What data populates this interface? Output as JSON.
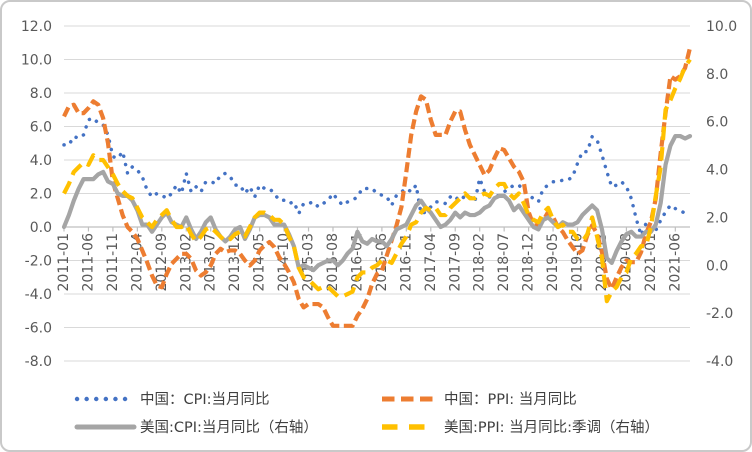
{
  "frame": {
    "background": "#ffffff",
    "border_color": "#c9c9c9"
  },
  "chart_data": {
    "type": "line",
    "title": "",
    "x_range": [
      "2011-01",
      "2021-09"
    ],
    "n_points": 129,
    "x_label_every": 5,
    "x_tick_labels": [
      "2011-01",
      "2011-06",
      "2011-11",
      "2012-04",
      "2012-09",
      "2013-02",
      "2013-07",
      "2013-12",
      "2014-05",
      "2014-10",
      "2015-03",
      "2015-08",
      "2016-01",
      "2016-06",
      "2016-11",
      "2017-04",
      "2017-09",
      "2018-02",
      "2018-07",
      "2018-12",
      "2019-05",
      "2019-10",
      "2020-03",
      "2020-08",
      "2021-01",
      "2021-06"
    ],
    "grid": true,
    "left_axis": {
      "min": -8,
      "max": 12,
      "step": 2,
      "tick_labels": [
        "12.0",
        "10.0",
        "8.0",
        "6.0",
        "4.0",
        "2.0",
        "0.0",
        "-2.0",
        "-4.0",
        "-6.0",
        "-8.0"
      ]
    },
    "right_axis": {
      "min": -4,
      "max": 10,
      "step": 2,
      "tick_labels": [
        "10.0",
        "8.0",
        "6.0",
        "4.0",
        "2.0",
        "0.0",
        "-2.0",
        "-4.0"
      ]
    },
    "axis_label_color": "#595959",
    "gridline_color": "#d9d9d9",
    "axis_line_color": "#bfbfbf",
    "legend": {
      "position": "bottom",
      "rows": 2,
      "columns": 2,
      "text_color": "#404040"
    },
    "series": [
      {
        "id": "china-cpi",
        "name": "中国：CPI:当月同比",
        "axis": "left",
        "color": "#4472C4",
        "style": "dot",
        "values": [
          4.9,
          4.9,
          5.4,
          5.3,
          5.5,
          6.4,
          6.5,
          6.2,
          6.1,
          5.5,
          4.2,
          4.1,
          4.5,
          3.2,
          3.6,
          3.4,
          3.0,
          2.2,
          1.8,
          2.0,
          1.9,
          1.7,
          2.0,
          2.5,
          2.0,
          3.2,
          2.1,
          2.4,
          2.1,
          2.7,
          2.7,
          2.6,
          3.1,
          3.2,
          3.0,
          2.5,
          2.5,
          2.0,
          2.4,
          1.8,
          2.5,
          2.3,
          2.3,
          2.0,
          1.6,
          1.6,
          1.4,
          1.5,
          0.8,
          1.4,
          1.4,
          1.5,
          1.2,
          1.4,
          1.6,
          2.0,
          1.6,
          1.3,
          1.5,
          1.6,
          1.8,
          2.3,
          2.3,
          2.3,
          2.0,
          1.9,
          1.8,
          1.3,
          1.9,
          2.1,
          2.3,
          2.1,
          2.5,
          0.8,
          0.9,
          1.2,
          1.5,
          1.5,
          1.4,
          1.8,
          1.6,
          1.9,
          1.7,
          1.8,
          1.5,
          2.9,
          2.1,
          1.8,
          1.8,
          1.9,
          2.1,
          2.3,
          2.5,
          2.5,
          2.2,
          1.9,
          1.7,
          1.5,
          2.3,
          2.5,
          2.7,
          2.7,
          2.8,
          2.8,
          3.0,
          3.8,
          4.5,
          4.5,
          5.4,
          5.2,
          4.3,
          3.3,
          2.4,
          2.5,
          2.7,
          2.4,
          1.7,
          0.5,
          -0.5,
          0.2,
          -0.3,
          -0.2,
          0.4,
          0.9,
          1.3,
          1.1,
          1.0,
          0.8,
          0.7
        ]
      },
      {
        "id": "china-ppi",
        "name": "中国：PPI: 当月同比",
        "axis": "left",
        "color": "#ED7D31",
        "style": "dash",
        "values": [
          6.6,
          7.2,
          7.3,
          6.8,
          6.8,
          7.1,
          7.5,
          7.3,
          6.5,
          5.0,
          2.7,
          1.7,
          0.7,
          0.0,
          -0.3,
          -0.7,
          -1.4,
          -2.1,
          -2.9,
          -3.5,
          -3.6,
          -2.8,
          -2.2,
          -1.9,
          -1.6,
          -1.6,
          -1.9,
          -2.6,
          -2.9,
          -2.7,
          -2.3,
          -1.6,
          -1.3,
          -1.5,
          -1.4,
          -1.4,
          -1.6,
          -2.0,
          -2.3,
          -2.0,
          -1.4,
          -1.1,
          -0.9,
          -1.2,
          -1.8,
          -2.2,
          -2.7,
          -3.3,
          -4.3,
          -4.8,
          -4.6,
          -4.6,
          -4.6,
          -4.8,
          -5.4,
          -5.9,
          -5.9,
          -5.9,
          -5.9,
          -5.9,
          -5.3,
          -4.9,
          -4.3,
          -3.4,
          -2.8,
          -2.6,
          -1.7,
          -0.8,
          0.1,
          1.2,
          3.3,
          5.5,
          6.9,
          7.8,
          7.6,
          6.4,
          5.5,
          5.5,
          5.5,
          6.3,
          6.9,
          6.9,
          5.8,
          4.9,
          4.3,
          3.7,
          3.1,
          3.4,
          4.1,
          4.7,
          4.6,
          4.1,
          3.6,
          3.3,
          2.7,
          0.9,
          0.1,
          0.1,
          0.4,
          0.9,
          0.6,
          0.0,
          -0.3,
          -0.8,
          -1.2,
          -1.6,
          -1.4,
          -0.5,
          0.1,
          -0.4,
          -1.5,
          -3.1,
          -3.7,
          -3.0,
          -2.4,
          -2.0,
          -2.1,
          -2.1,
          -1.5,
          -0.4,
          0.3,
          1.7,
          4.4,
          6.8,
          9.0,
          8.8,
          9.0,
          9.5,
          10.7
        ]
      },
      {
        "id": "us-cpi",
        "name": "美国:CPI:当月同比（右轴）",
        "axis": "right",
        "color": "#A5A5A5",
        "style": "solid",
        "values": [
          1.6,
          2.1,
          2.7,
          3.2,
          3.6,
          3.6,
          3.6,
          3.8,
          3.9,
          3.5,
          3.4,
          3.0,
          2.9,
          2.9,
          2.7,
          2.3,
          1.7,
          1.7,
          1.4,
          1.7,
          2.0,
          2.2,
          1.8,
          1.7,
          1.6,
          2.0,
          1.5,
          1.1,
          1.4,
          1.8,
          2.0,
          1.5,
          1.2,
          1.0,
          1.2,
          1.5,
          1.6,
          1.1,
          1.5,
          2.0,
          2.1,
          2.1,
          2.0,
          1.7,
          1.7,
          1.7,
          1.3,
          0.8,
          -0.1,
          0.0,
          -0.1,
          -0.2,
          0.0,
          0.1,
          0.2,
          0.2,
          0.0,
          0.2,
          0.5,
          0.7,
          1.4,
          1.0,
          0.9,
          1.1,
          1.0,
          1.0,
          0.8,
          1.1,
          1.5,
          1.6,
          1.7,
          2.1,
          2.5,
          2.7,
          2.4,
          2.2,
          1.9,
          1.6,
          1.7,
          1.9,
          2.2,
          2.0,
          2.2,
          2.1,
          2.1,
          2.2,
          2.4,
          2.5,
          2.8,
          2.9,
          2.9,
          2.7,
          2.3,
          2.5,
          2.2,
          1.9,
          1.6,
          1.5,
          1.9,
          2.0,
          1.8,
          1.6,
          1.8,
          1.7,
          1.7,
          1.8,
          2.1,
          2.3,
          2.5,
          2.3,
          1.5,
          0.3,
          0.1,
          0.6,
          1.0,
          1.3,
          1.4,
          1.2,
          1.2,
          1.4,
          1.4,
          1.7,
          2.6,
          4.2,
          5.0,
          5.4,
          5.4,
          5.3,
          5.4
        ]
      },
      {
        "id": "us-ppi",
        "name": "美国:PPI: 当月同比:季调（右轴）",
        "axis": "right",
        "color": "#FFC000",
        "style": "long-dash",
        "values": [
          3.0,
          3.4,
          3.9,
          4.1,
          4.3,
          4.2,
          4.6,
          4.4,
          4.4,
          4.1,
          3.8,
          3.4,
          3.1,
          2.9,
          2.8,
          2.4,
          2.0,
          1.8,
          1.6,
          1.9,
          2.1,
          2.3,
          1.9,
          1.6,
          1.6,
          1.7,
          1.3,
          1.0,
          1.2,
          1.5,
          1.6,
          1.4,
          1.2,
          1.0,
          1.1,
          1.3,
          1.4,
          1.2,
          1.6,
          2.0,
          2.2,
          2.2,
          2.1,
          1.9,
          1.9,
          1.7,
          1.2,
          0.8,
          -0.1,
          -0.5,
          -0.6,
          -0.8,
          -1.0,
          -0.9,
          -0.9,
          -1.1,
          -1.3,
          -1.3,
          -1.2,
          -1.1,
          -0.5,
          -0.3,
          -0.3,
          -0.1,
          0.0,
          0.2,
          0.2,
          0.1,
          0.5,
          0.9,
          1.2,
          1.7,
          1.8,
          2.2,
          2.4,
          2.3,
          2.4,
          2.1,
          2.1,
          2.4,
          2.6,
          2.8,
          3.0,
          2.8,
          2.8,
          2.9,
          3.0,
          2.9,
          3.2,
          3.4,
          3.4,
          3.0,
          2.8,
          3.0,
          2.6,
          2.1,
          1.9,
          1.8,
          2.2,
          2.4,
          1.9,
          1.6,
          1.7,
          1.4,
          1.4,
          1.1,
          1.0,
          1.3,
          2.0,
          1.2,
          0.3,
          -1.5,
          -1.1,
          -0.9,
          -0.5,
          -0.3,
          0.3,
          0.5,
          0.8,
          0.8,
          1.6,
          2.9,
          4.1,
          6.5,
          6.9,
          7.4,
          7.8,
          8.3,
          8.6
        ]
      }
    ]
  }
}
